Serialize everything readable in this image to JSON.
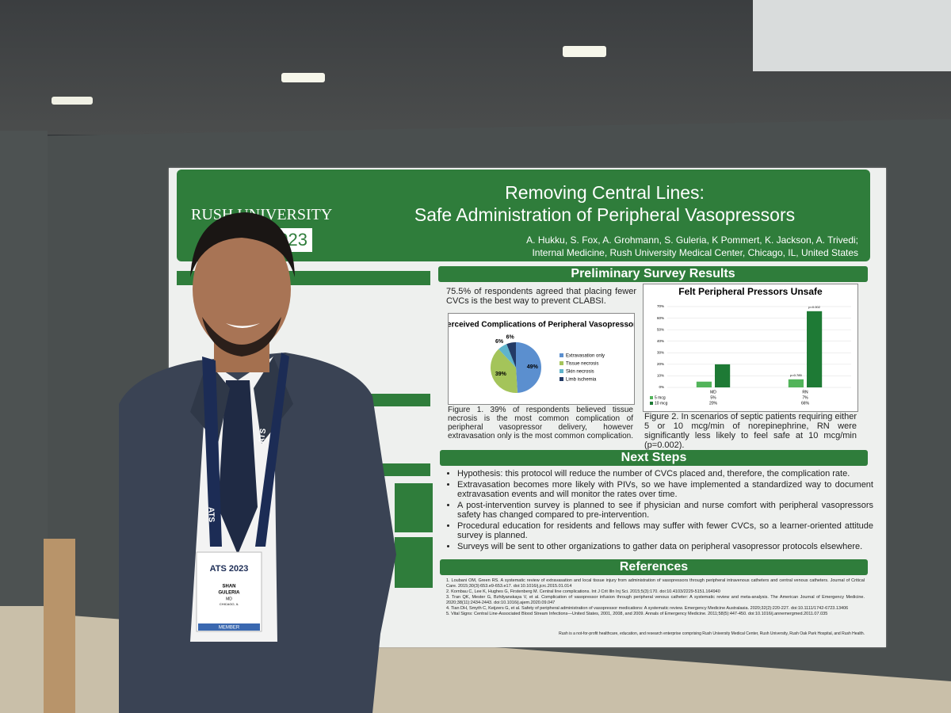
{
  "poster": {
    "logo": "RUSH UNIVERSITY",
    "badge_year": "2023",
    "title_line1": "Removing Central Lines:",
    "title_line2": "Safe Administration of Peripheral Vasopressors",
    "authors": "A. Hukku, S. Fox, A. Grohmann, S. Guleria, K Pommert, K. Jackson, A. Trivedi;",
    "affiliation": "Internal Medicine, Rush University Medical Center, Chicago, IL, United States",
    "results_heading": "Preliminary Survey Results",
    "results_bullet": "75.5% of respondents agreed that placing fewer CVCs is the best way to prevent CLABSI.",
    "figure1_caption": "Figure 1. 39% of respondents believed tissue necrosis is the most common complication of peripheral vasopressor delivery, however extravasation only is the most common complication.",
    "figure2_caption": "Figure 2. In scenarios of septic patients requiring either 5 or 10 mcg/min of norepinephrine, RN were significantly less likely to feel safe at 10 mcg/min (p=0.002).",
    "next_steps_heading": "Next Steps",
    "next_steps": [
      "Hypothesis: this protocol will reduce the number of CVCs placed and, therefore, the complication rate.",
      "Extravasation becomes more likely with PIVs, so we have implemented a standardized way to document extravasation events and will monitor the rates over time.",
      "A post-intervention survey is planned to see if physician and nurse comfort with peripheral vasopressors safety has changed compared to pre-intervention.",
      "Procedural education for residents and fellows may suffer with fewer CVCs, so a learner-oriented attitude survey is planned.",
      "Surveys will be sent to other organizations to gather data on peripheral vasopressor protocols elsewhere."
    ],
    "references_heading": "References",
    "references": [
      "1. Loubani OM, Green RS. A systematic review of extravasation and local tissue injury from administration of vasopressors through peripheral intravenous catheters and central venous catheters. Journal of Critical Care. 2015;30(3):653.e9-653.e17. doi:10.1016/j.jcrc.2015.01.014",
      "2. Kornbau C, Lee K, Hughes G, Firstenberg M. Central line complications. Int J Crit Illn Inj Sci. 2015;5(3):170. doi:10.4103/2229-5151.164940",
      "3. Tran QK, Mester G, Bzhilyanskaya V, et al. Complication of vasopressor infusion through peripheral venous catheter: A systematic review and meta-analysis. The American Journal of Emergency Medicine. 2020;38(11):2434-2443. doi:10.1016/j.ajem.2020.09.047",
      "4. Tian DH, Smyth C, Keijzers G, et al. Safety of peripheral administration of vasopressor medications: A systematic review. Emergency Medicine Australasia. 2020;32(2):220-227. doi:10.1111/1742-6723.13406",
      "5. Vital Signs: Central Line-Associated Blood Stream Infections—United States, 2001, 2008, and 2009. Annals of Emergency Medicine. 2011;58(5):447-450. doi:10.1016/j.annemergmed.2011.07.035"
    ],
    "footer": "Rush is a not-for-profit healthcare, education, and research enterprise comprising Rush University Medical Center, Rush University, Rush Oak Park Hospital, and Rush Health."
  },
  "pie_chart": {
    "type": "pie",
    "title": "Perceived Complications of Peripheral Vasopressors",
    "categories": [
      "Extravasation only",
      "Tissue necrosis",
      "Skin necrosis",
      "Limb ischemia"
    ],
    "values": [
      49,
      39,
      6,
      6
    ],
    "value_labels": [
      "49%",
      "39%",
      "6%",
      "6%"
    ],
    "colors": [
      "#5b8fcf",
      "#a4c45a",
      "#5fb4cc",
      "#233a66"
    ]
  },
  "bar_chart": {
    "type": "bar",
    "title": "Felt Peripheral Pressors Unsafe",
    "categories": [
      "MD",
      "RN"
    ],
    "series": [
      {
        "name": "5 mcg",
        "color": "#52b45a",
        "values": [
          5,
          7
        ],
        "value_labels": [
          "5%",
          "7%"
        ]
      },
      {
        "name": "10 mcg",
        "color": "#1e7a35",
        "values": [
          20,
          66
        ],
        "value_labels": [
          "20%",
          "66%"
        ]
      }
    ],
    "annotations": [
      "p=0.785",
      "p=0.002"
    ],
    "ylim": [
      0,
      70
    ],
    "yticks": [
      {
        "value": 0,
        "label": "0%"
      },
      {
        "value": 10,
        "label": "10%"
      },
      {
        "value": 20,
        "label": "20%"
      },
      {
        "value": 30,
        "label": "30%"
      },
      {
        "value": 40,
        "label": "40%"
      },
      {
        "value": 50,
        "label": "50%"
      },
      {
        "value": 60,
        "label": "60%"
      },
      {
        "value": 70,
        "label": "70%"
      }
    ],
    "grid": true
  },
  "badge": {
    "first_name": "SHAN",
    "last_name": "GULERIA",
    "degree": "MD",
    "city": "CHICAGO, IL",
    "event": "ATS 2023",
    "member": "MEMBER"
  },
  "lanyard": "ATS"
}
